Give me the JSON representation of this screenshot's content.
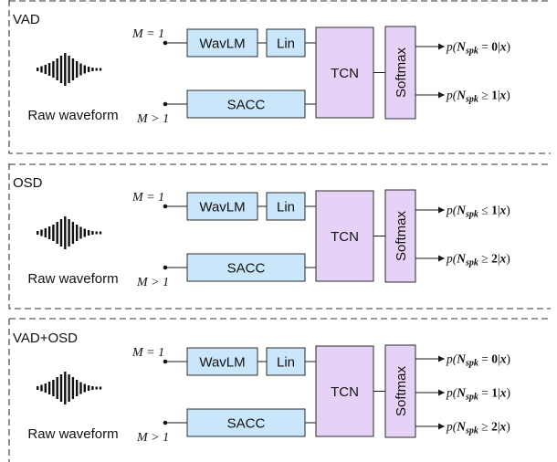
{
  "panels": [
    {
      "title": "VAD",
      "raw_label": "Raw waveform",
      "m_single": "M = 1",
      "m_multi": "M > 1",
      "wavlm": "WavLM",
      "lin": "Lin",
      "sacc": "SACC",
      "tcn": "TCN",
      "softmax": "Softmax",
      "outputs": [
        {
          "rel": "=",
          "n": "0"
        },
        {
          "rel": "≥",
          "n": "1"
        }
      ]
    },
    {
      "title": "OSD",
      "raw_label": "Raw waveform",
      "m_single": "M = 1",
      "m_multi": "M > 1",
      "wavlm": "WavLM",
      "lin": "Lin",
      "sacc": "SACC",
      "tcn": "TCN",
      "softmax": "Softmax",
      "outputs": [
        {
          "rel": "≤",
          "n": "1"
        },
        {
          "rel": "≥",
          "n": "2"
        }
      ]
    },
    {
      "title": "VAD+OSD",
      "raw_label": "Raw waveform",
      "m_single": "M = 1",
      "m_multi": "M > 1",
      "wavlm": "WavLM",
      "lin": "Lin",
      "sacc": "SACC",
      "tcn": "TCN",
      "softmax": "Softmax",
      "outputs": [
        {
          "rel": "=",
          "n": "0"
        },
        {
          "rel": "=",
          "n": "1"
        },
        {
          "rel": "≥",
          "n": "2"
        }
      ]
    }
  ],
  "output_template": {
    "p": "p(",
    "var": "N",
    "sub": "spk",
    "given": "|",
    "x": "x",
    "close": ")"
  },
  "colors": {
    "blue_box": "#c9e6fb",
    "purple_box": "#e6d2f6",
    "lines": "#1a1a1a"
  },
  "icons": {
    "waveform": "waveform-icon"
  }
}
